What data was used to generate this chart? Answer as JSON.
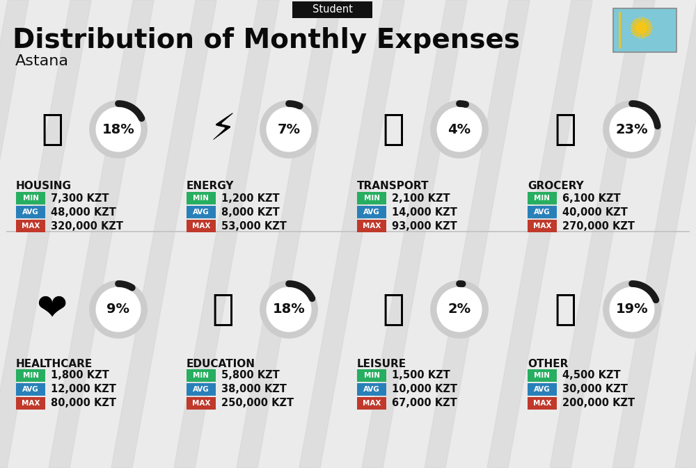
{
  "title": "Distribution of Monthly Expenses",
  "subtitle": "Student",
  "city": "Astana",
  "bg_color": "#ebebeb",
  "categories": [
    {
      "name": "HOUSING",
      "pct": 18,
      "min": "7,300 KZT",
      "avg": "48,000 KZT",
      "max": "320,000 KZT",
      "icon": "🏙",
      "row": 0,
      "col": 0
    },
    {
      "name": "ENERGY",
      "pct": 7,
      "min": "1,200 KZT",
      "avg": "8,000 KZT",
      "max": "53,000 KZT",
      "icon": "⚡",
      "row": 0,
      "col": 1
    },
    {
      "name": "TRANSPORT",
      "pct": 4,
      "min": "2,100 KZT",
      "avg": "14,000 KZT",
      "max": "93,000 KZT",
      "icon": "🚌",
      "row": 0,
      "col": 2
    },
    {
      "name": "GROCERY",
      "pct": 23,
      "min": "6,100 KZT",
      "avg": "40,000 KZT",
      "max": "270,000 KZT",
      "icon": "🛒",
      "row": 0,
      "col": 3
    },
    {
      "name": "HEALTHCARE",
      "pct": 9,
      "min": "1,800 KZT",
      "avg": "12,000 KZT",
      "max": "80,000 KZT",
      "icon": "❤️",
      "row": 1,
      "col": 0
    },
    {
      "name": "EDUCATION",
      "pct": 18,
      "min": "5,800 KZT",
      "avg": "38,000 KZT",
      "max": "250,000 KZT",
      "icon": "🎓",
      "row": 1,
      "col": 1
    },
    {
      "name": "LEISURE",
      "pct": 2,
      "min": "1,500 KZT",
      "avg": "10,000 KZT",
      "max": "67,000 KZT",
      "icon": "🛍",
      "row": 1,
      "col": 2
    },
    {
      "name": "OTHER",
      "pct": 19,
      "min": "4,500 KZT",
      "avg": "30,000 KZT",
      "max": "200,000 KZT",
      "icon": "👛",
      "row": 1,
      "col": 3
    }
  ],
  "color_min": "#27ae60",
  "color_avg": "#2980b9",
  "color_max": "#c0392b",
  "arc_filled": "#1a1a1a",
  "arc_bg": "#cccccc",
  "header_bg": "#111111",
  "header_fg": "#ffffff",
  "stripe_color": "#d5d5d5",
  "flag_bg": "#7ec8d8",
  "flag_sun": "#f5c518"
}
